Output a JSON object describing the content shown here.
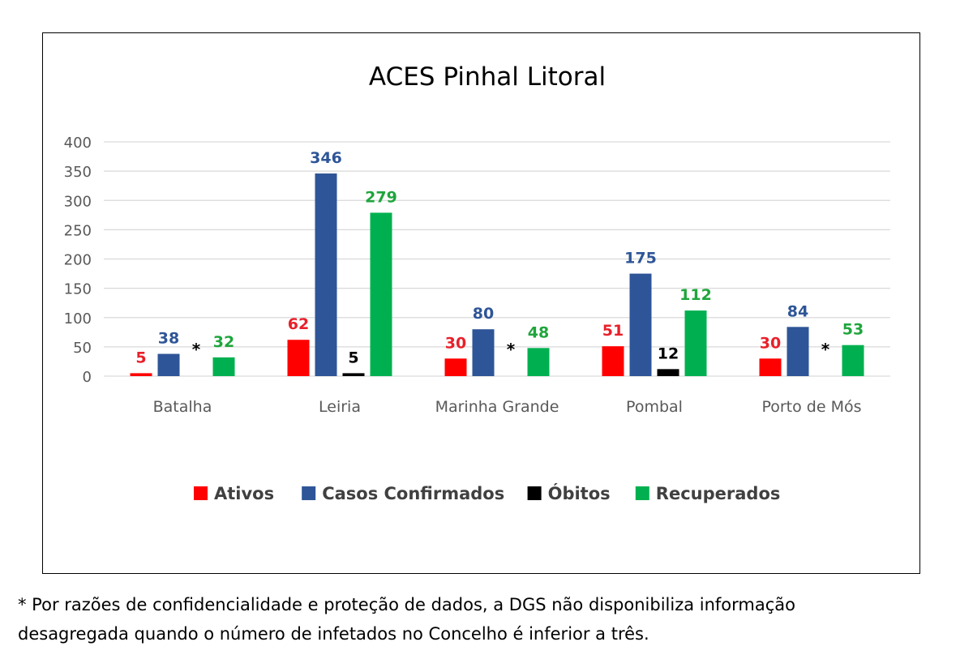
{
  "chart_data": {
    "type": "bar",
    "title": "ACES Pinhal Litoral",
    "xlabel": "",
    "ylabel": "",
    "categories": [
      "Batalha",
      "Leiria",
      "Marinha Grande",
      "Pombal",
      "Porto de Mós"
    ],
    "ylim": [
      0,
      400
    ],
    "yticks": [
      0,
      50,
      100,
      150,
      200,
      250,
      300,
      350,
      400
    ],
    "grid": true,
    "legend_position": "bottom",
    "series": [
      {
        "name": "Ativos",
        "color": "#ff0000",
        "label_color": "#e8202a",
        "values": [
          5,
          62,
          30,
          51,
          30
        ],
        "labels": [
          "5",
          "62",
          "30",
          "51",
          "30"
        ]
      },
      {
        "name": "Casos Confirmados",
        "color": "#2e5597",
        "label_color": "#2e5597",
        "values": [
          38,
          346,
          80,
          175,
          84
        ],
        "labels": [
          "38",
          "346",
          "80",
          "175",
          "84"
        ]
      },
      {
        "name": "Óbitos",
        "color": "#000000",
        "label_color": "#000000",
        "values": [
          null,
          5,
          null,
          12,
          null
        ],
        "labels": [
          "*",
          "5",
          "*",
          "12",
          "*"
        ]
      },
      {
        "name": "Recuperados",
        "color": "#00b050",
        "label_color": "#1fa53c",
        "values": [
          32,
          279,
          48,
          112,
          53
        ],
        "labels": [
          "32",
          "279",
          "48",
          "112",
          "53"
        ]
      }
    ]
  },
  "footnote": {
    "line1": "* Por razões de confidencialidade e proteção de dados, a DGS não disponibiliza informação",
    "line2": "desagregada quando o número de infetados no Concelho é inferior a três."
  }
}
